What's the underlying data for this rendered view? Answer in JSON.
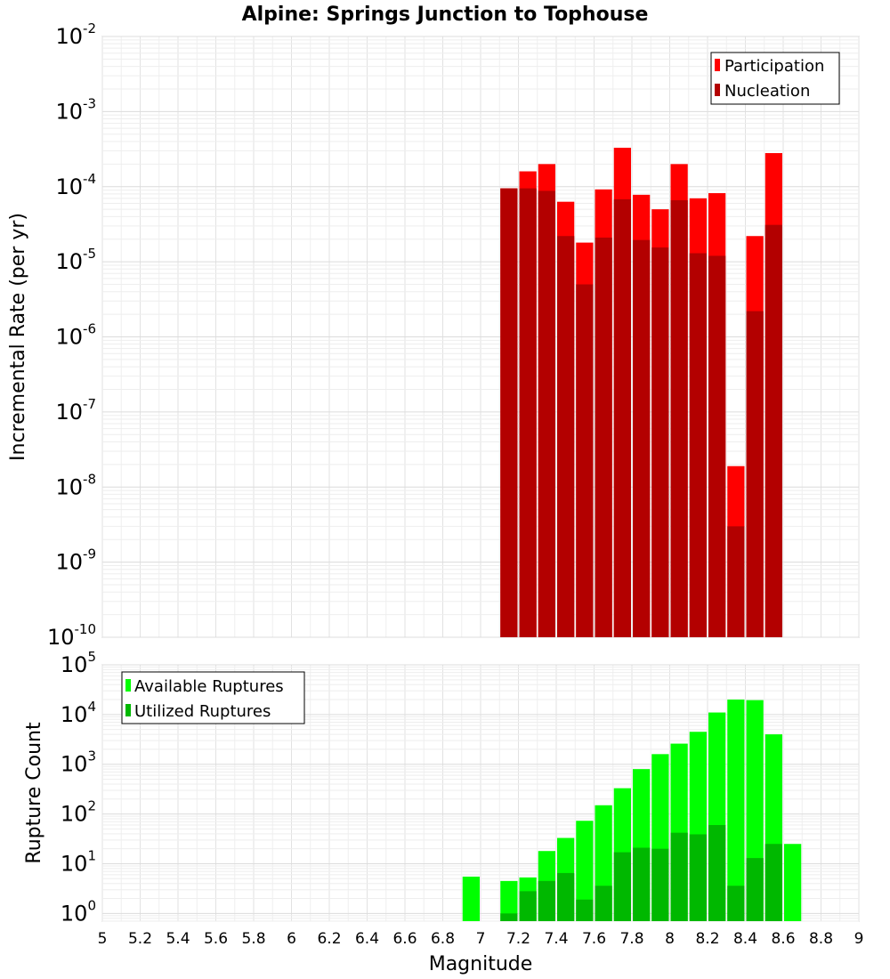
{
  "chart_data": [
    {
      "type": "bar",
      "title": "Alpine: Springs Junction to Tophouse",
      "xlabel": "",
      "ylabel": "Incremental Rate (per yr)",
      "xlim": [
        5,
        9
      ],
      "ylim": [
        1e-10,
        0.01
      ],
      "yscale": "log",
      "grid": true,
      "legend_position": "top-right",
      "bar_width": 0.1,
      "x": [
        7.15,
        7.25,
        7.35,
        7.45,
        7.55,
        7.65,
        7.75,
        7.85,
        7.95,
        8.05,
        8.15,
        8.25,
        8.35,
        8.45,
        8.55
      ],
      "series": [
        {
          "name": "Participation",
          "color": "#ff0000",
          "values": [
            9.5e-05,
            0.00016,
            0.0002,
            6.3e-05,
            1.8e-05,
            9.2e-05,
            0.00033,
            7.8e-05,
            5e-05,
            0.0002,
            7e-05,
            8.2e-05,
            1.9e-08,
            2.2e-05,
            0.00028
          ]
        },
        {
          "name": "Nucleation",
          "color": "#b30000",
          "values": [
            9.5e-05,
            9.5e-05,
            8.8e-05,
            2.2e-05,
            5e-06,
            2.1e-05,
            6.8e-05,
            1.95e-05,
            1.55e-05,
            6.6e-05,
            1.3e-05,
            1.2e-05,
            3e-09,
            2.2e-06,
            3.1e-05
          ]
        }
      ],
      "yticks": [
        {
          "base": "10",
          "exp": "-10"
        },
        {
          "base": "10",
          "exp": "-9"
        },
        {
          "base": "10",
          "exp": "-8"
        },
        {
          "base": "10",
          "exp": "-7"
        },
        {
          "base": "10",
          "exp": "-6"
        },
        {
          "base": "10",
          "exp": "-5"
        },
        {
          "base": "10",
          "exp": "-4"
        },
        {
          "base": "10",
          "exp": "-3"
        },
        {
          "base": "10",
          "exp": "-2"
        }
      ]
    },
    {
      "type": "bar",
      "title": "",
      "xlabel": "Magnitude",
      "ylabel": "Rupture Count",
      "xlim": [
        5,
        9
      ],
      "ylim": [
        0.7,
        100000.0
      ],
      "yscale": "log",
      "grid": true,
      "legend_position": "top-left",
      "bar_width": 0.1,
      "x": [
        6.95,
        7.15,
        7.25,
        7.35,
        7.45,
        7.55,
        7.65,
        7.75,
        7.85,
        7.95,
        8.05,
        8.15,
        8.25,
        8.35,
        8.45,
        8.55,
        8.65
      ],
      "series": [
        {
          "name": "Available Ruptures",
          "color": "#00ff00",
          "values": [
            5.5,
            4.5,
            5.3,
            18,
            33,
            73,
            150,
            330,
            800,
            1600,
            2600,
            4500,
            11000,
            20000,
            19500,
            4000,
            25
          ]
        },
        {
          "name": "Utilized Ruptures",
          "color": "#00b800",
          "values": [
            null,
            1,
            2.8,
            4.5,
            6.5,
            1.9,
            3.6,
            17,
            21,
            20,
            42,
            39,
            60,
            3.6,
            13,
            25,
            null
          ]
        }
      ],
      "yticks": [
        {
          "base": "10",
          "exp": "0"
        },
        {
          "base": "10",
          "exp": "1"
        },
        {
          "base": "10",
          "exp": "2"
        },
        {
          "base": "10",
          "exp": "3"
        },
        {
          "base": "10",
          "exp": "4"
        },
        {
          "base": "10",
          "exp": "5"
        }
      ],
      "xticks": [
        "5",
        "5.2",
        "5.4",
        "5.6",
        "5.8",
        "6",
        "6.2",
        "6.4",
        "6.6",
        "6.8",
        "7",
        "7.2",
        "7.4",
        "7.6",
        "7.8",
        "8",
        "8.2",
        "8.4",
        "8.6",
        "8.8",
        "9"
      ]
    }
  ]
}
